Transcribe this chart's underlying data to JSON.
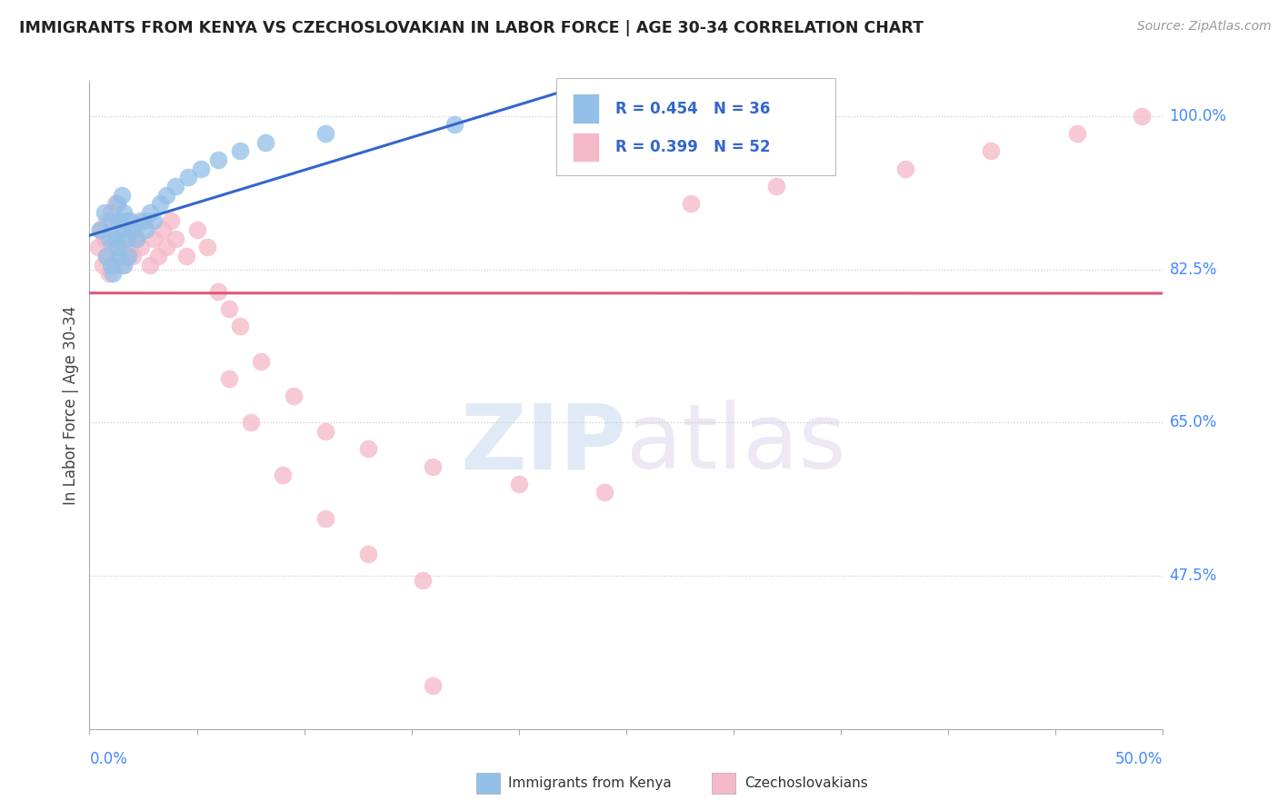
{
  "title": "IMMIGRANTS FROM KENYA VS CZECHOSLOVAKIAN IN LABOR FORCE | AGE 30-34 CORRELATION CHART",
  "source": "Source: ZipAtlas.com",
  "ylabel_label": "In Labor Force | Age 30-34",
  "xlim": [
    0.0,
    0.5
  ],
  "ylim": [
    0.3,
    1.04
  ],
  "color_kenya": "#92c0e8",
  "color_czech": "#f5b8c8",
  "line_color_kenya": "#3366cc",
  "line_color_czech": "#e05575",
  "watermark_zip": "ZIP",
  "watermark_atlas": "atlas",
  "kenya_x": [
    0.005,
    0.007,
    0.008,
    0.009,
    0.01,
    0.01,
    0.011,
    0.012,
    0.013,
    0.013,
    0.014,
    0.014,
    0.015,
    0.015,
    0.016,
    0.016,
    0.017,
    0.018,
    0.019,
    0.02,
    0.022,
    0.024,
    0.026,
    0.028,
    0.03,
    0.033,
    0.036,
    0.04,
    0.046,
    0.052,
    0.06,
    0.07,
    0.082,
    0.11,
    0.17,
    0.26
  ],
  "kenya_y": [
    0.87,
    0.89,
    0.84,
    0.86,
    0.83,
    0.88,
    0.82,
    0.86,
    0.85,
    0.9,
    0.84,
    0.88,
    0.87,
    0.91,
    0.83,
    0.89,
    0.86,
    0.84,
    0.88,
    0.87,
    0.86,
    0.88,
    0.87,
    0.89,
    0.88,
    0.9,
    0.91,
    0.92,
    0.93,
    0.94,
    0.95,
    0.96,
    0.97,
    0.98,
    0.99,
    1.0
  ],
  "czech_x": [
    0.004,
    0.005,
    0.006,
    0.007,
    0.008,
    0.008,
    0.009,
    0.01,
    0.01,
    0.011,
    0.012,
    0.012,
    0.013,
    0.013,
    0.014,
    0.015,
    0.016,
    0.017,
    0.017,
    0.018,
    0.019,
    0.02,
    0.021,
    0.022,
    0.024,
    0.026,
    0.028,
    0.03,
    0.032,
    0.034,
    0.036,
    0.038,
    0.04,
    0.045,
    0.05,
    0.055,
    0.06,
    0.065,
    0.07,
    0.08,
    0.095,
    0.11,
    0.13,
    0.16,
    0.2,
    0.24,
    0.28,
    0.32,
    0.38,
    0.42,
    0.46,
    0.49
  ],
  "czech_y": [
    0.85,
    0.87,
    0.83,
    0.86,
    0.84,
    0.88,
    0.82,
    0.85,
    0.89,
    0.83,
    0.86,
    0.9,
    0.84,
    0.87,
    0.85,
    0.83,
    0.86,
    0.84,
    0.88,
    0.87,
    0.85,
    0.84,
    0.87,
    0.86,
    0.85,
    0.88,
    0.83,
    0.86,
    0.84,
    0.87,
    0.85,
    0.88,
    0.86,
    0.84,
    0.87,
    0.85,
    0.8,
    0.78,
    0.76,
    0.72,
    0.68,
    0.64,
    0.62,
    0.6,
    0.58,
    0.57,
    0.9,
    0.92,
    0.94,
    0.96,
    0.98,
    1.0
  ],
  "czech_outlier_x": [
    0.065,
    0.075,
    0.09,
    0.11,
    0.13,
    0.155
  ],
  "czech_outlier_y": [
    0.7,
    0.65,
    0.59,
    0.54,
    0.5,
    0.47
  ],
  "czech_low_x": [
    0.16
  ],
  "czech_low_y": [
    0.35
  ],
  "yticks": [
    1.0,
    0.825,
    0.65,
    0.475
  ],
  "ytick_labels": [
    "100.0%",
    "82.5%",
    "65.0%",
    "47.5%"
  ],
  "xtick_positions": [
    0.0,
    0.05,
    0.1,
    0.15,
    0.2,
    0.25,
    0.3,
    0.35,
    0.4,
    0.45,
    0.5
  ]
}
